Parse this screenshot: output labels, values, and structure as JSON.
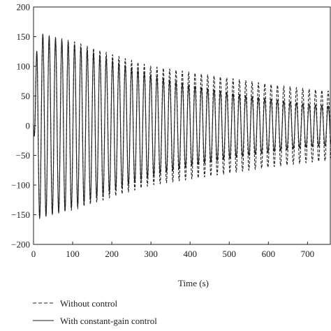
{
  "chart_data": {
    "type": "line",
    "title": "",
    "xlabel": "Time (s)",
    "ylabel": "",
    "xlim": [
      0,
      760
    ],
    "ylim": [
      -200,
      200
    ],
    "x_ticks": [
      0,
      100,
      200,
      300,
      400,
      500,
      600,
      700
    ],
    "y_ticks": [
      200,
      150,
      100,
      50,
      0,
      -50,
      -100,
      -150,
      -200
    ],
    "grid": false,
    "legend_position": "bottom-left",
    "oscillation_period_s": 16.2,
    "series": [
      {
        "name": "Without control",
        "line_style": "dashed",
        "color": "#222222",
        "envelope": {
          "t": [
            0,
            10,
            100,
            200,
            300,
            400,
            500,
            600,
            700,
            760
          ],
          "amplitude": [
            0,
            155,
            142,
            120,
            100,
            90,
            80,
            70,
            62,
            58
          ]
        }
      },
      {
        "name": "With constant-gain control",
        "line_style": "solid",
        "color": "#222222",
        "envelope": {
          "t": [
            0,
            10,
            100,
            200,
            300,
            400,
            500,
            600,
            700,
            760
          ],
          "amplitude": [
            0,
            157,
            138,
            110,
            85,
            68,
            55,
            45,
            36,
            33
          ]
        }
      }
    ]
  }
}
